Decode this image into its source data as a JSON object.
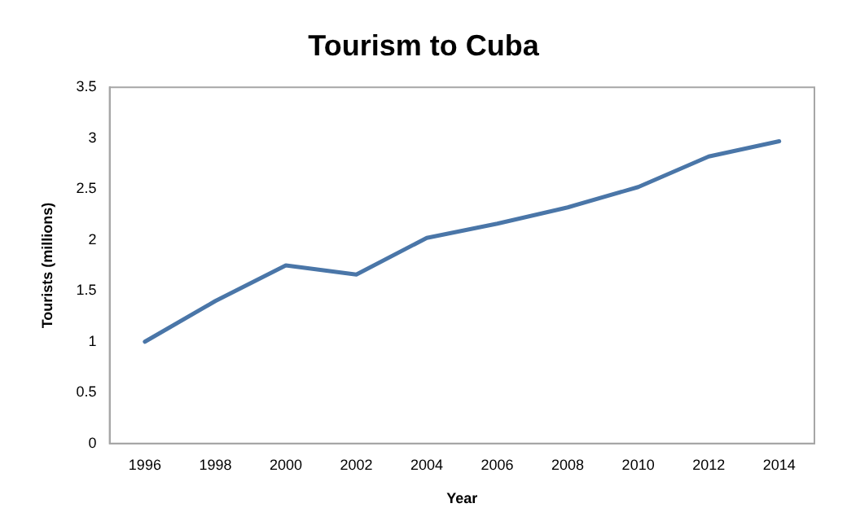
{
  "chart_data": {
    "type": "line",
    "title": "Tourism to Cuba",
    "xlabel": "Year",
    "ylabel": "Tourists (millions)",
    "categories": [
      "1996",
      "1998",
      "2000",
      "2002",
      "2004",
      "2006",
      "2008",
      "2010",
      "2012",
      "2014"
    ],
    "series": [
      {
        "color": "#4a76a8",
        "values": [
          1.0,
          1.4,
          1.75,
          1.66,
          2.02,
          2.16,
          2.32,
          2.52,
          2.82,
          2.97
        ]
      }
    ],
    "ylim": [
      0,
      3.5
    ],
    "yticks": [
      0,
      0.5,
      1,
      1.5,
      2,
      2.5,
      3,
      3.5
    ],
    "grid": false,
    "legend": false,
    "marker": "none",
    "line_style": "solid"
  }
}
